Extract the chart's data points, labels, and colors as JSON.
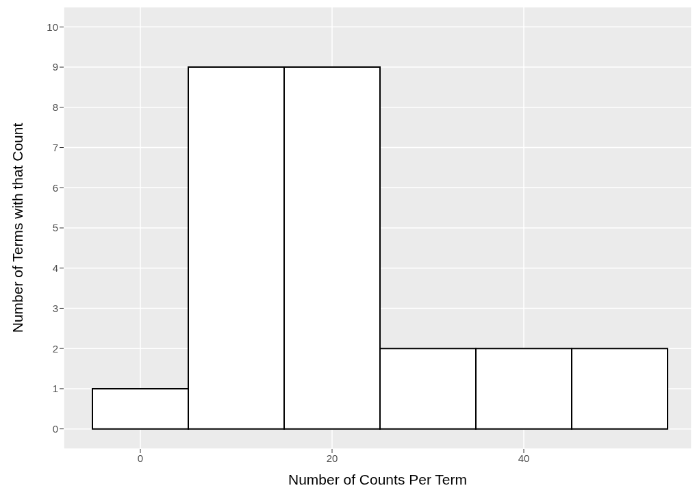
{
  "chart_data": {
    "type": "histogram",
    "xlabel": "Number of Counts Per Term",
    "ylabel": "Number of Terms with that Count",
    "bins": [
      -5,
      5,
      15,
      25,
      35,
      45,
      55
    ],
    "values": [
      1,
      9,
      9,
      2,
      2,
      2
    ],
    "color": "#ffffff",
    "xlim": [
      -8,
      57.5
    ],
    "xticks": [
      0,
      20,
      40
    ],
    "ylim": [
      -0.5,
      10.5
    ],
    "yticks": [
      0,
      1,
      2,
      3,
      4,
      5,
      6,
      7,
      8,
      9,
      10
    ],
    "grid": true
  }
}
